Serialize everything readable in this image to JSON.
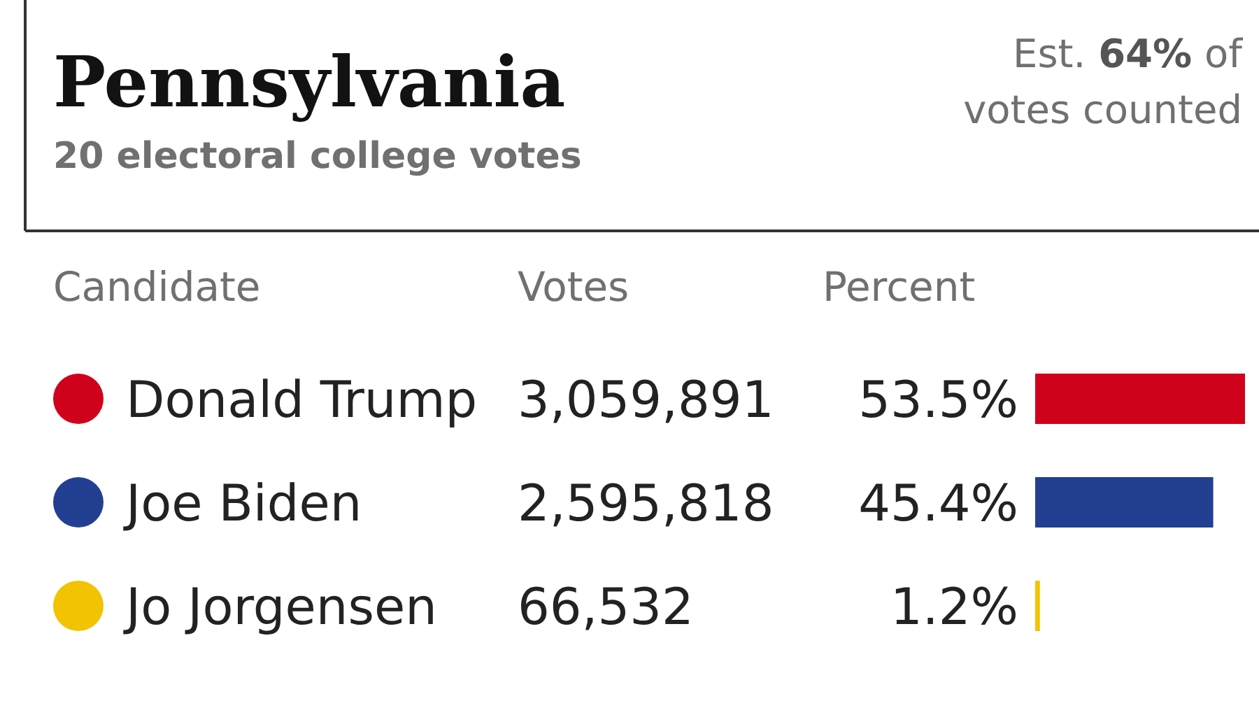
{
  "chart_data": {
    "type": "bar",
    "orientation": "horizontal",
    "title": "Pennsylvania",
    "subtitle": "20 electoral college votes",
    "categories": [
      "Donald Trump",
      "Joe Biden",
      "Jo Jorgensen"
    ],
    "values": [
      53.5,
      45.4,
      1.2
    ],
    "colors": [
      "#d0021b",
      "#233f92",
      "#f2c300"
    ],
    "value_labels": [
      "53.5%",
      "45.4%",
      "1.2%"
    ],
    "annotations": [
      "Est. 64% of votes counted",
      "Candidate",
      "Votes",
      "Percent",
      "3,059,891",
      "2,595,818",
      "66,532"
    ]
  }
}
